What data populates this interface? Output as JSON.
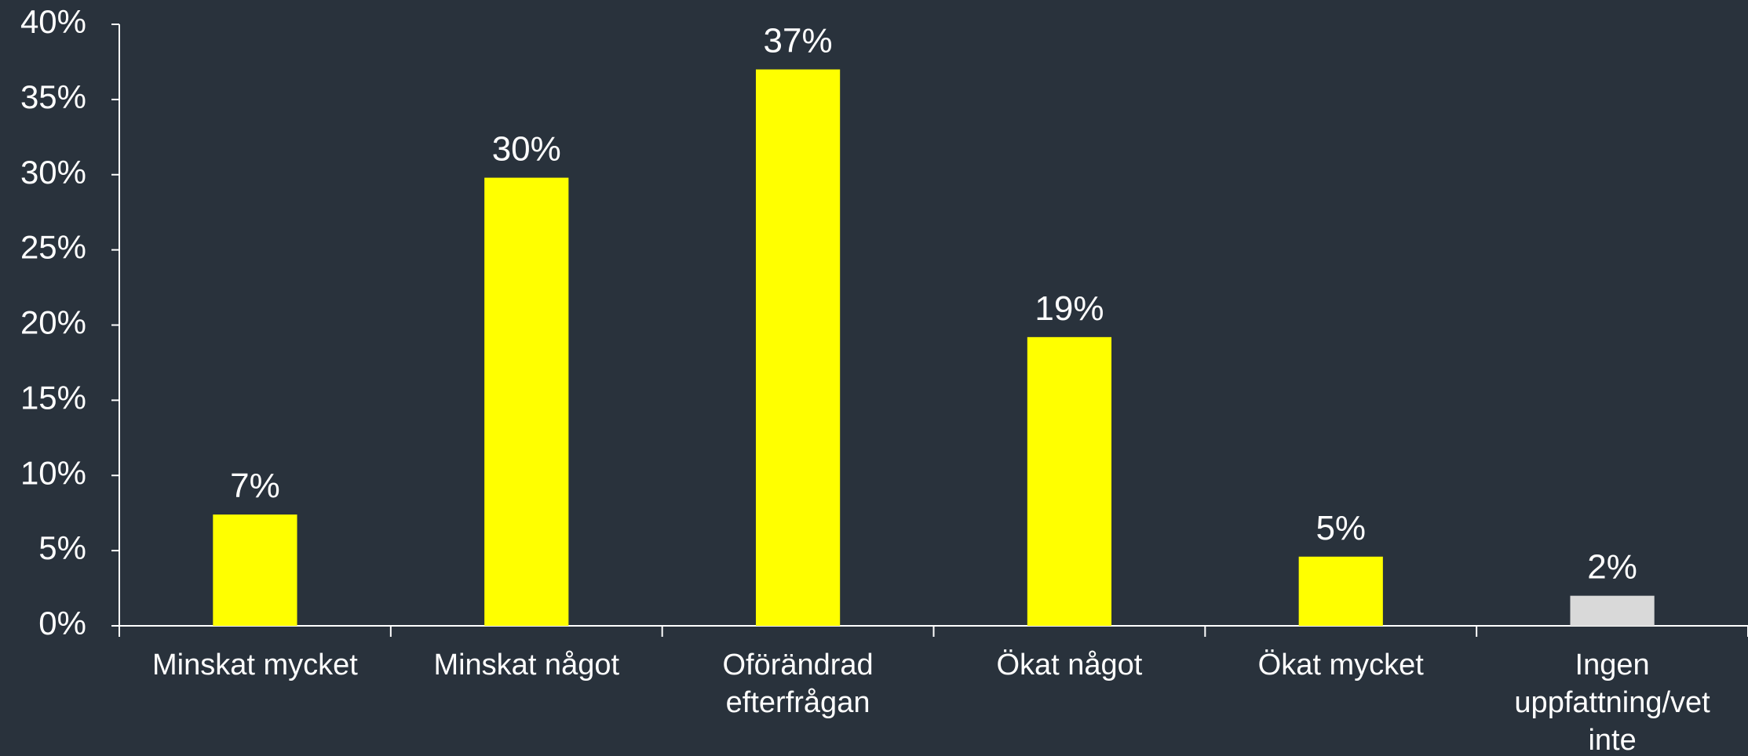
{
  "chart_data": {
    "type": "bar",
    "categories": [
      "Minskat mycket",
      "Minskat något",
      "Oförändrad efterfrågan",
      "Ökat något",
      "Ökat mycket",
      "Ingen uppfattning/vet inte"
    ],
    "values": [
      7.4,
      29.8,
      37,
      19.2,
      4.6,
      2
    ],
    "value_labels": [
      "7%",
      "30%",
      "37%",
      "19%",
      "5%",
      "2%"
    ],
    "colors": [
      "#ffff00",
      "#ffff00",
      "#ffff00",
      "#ffff00",
      "#ffff00",
      "#d9d9d9"
    ],
    "ylim": [
      0,
      40
    ],
    "yticks": [
      {
        "value": 0,
        "label": "0%"
      },
      {
        "value": 5,
        "label": "5%"
      },
      {
        "value": 10,
        "label": "10%"
      },
      {
        "value": 15,
        "label": "15%"
      },
      {
        "value": 20,
        "label": "20%"
      },
      {
        "value": 25,
        "label": "25%"
      },
      {
        "value": 30,
        "label": "30%"
      },
      {
        "value": 35,
        "label": "35%"
      },
      {
        "value": 40,
        "label": "40%"
      }
    ],
    "grid": false
  }
}
